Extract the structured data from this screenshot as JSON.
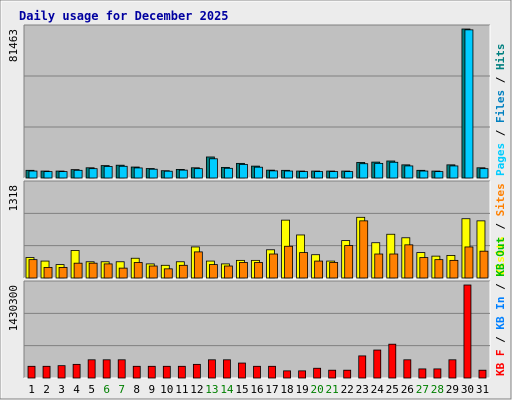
{
  "chart_data": {
    "type": "bar",
    "title": "Daily usage for December 2025",
    "colors": {
      "background": "#ececec",
      "panel": "#c0c0c0",
      "title": "#0000a0",
      "pages": "#00ccff",
      "files": "#0080c0",
      "hits": "#008080",
      "visits": "#ffff00",
      "sites": "#ff8000",
      "kbin": "#0080ff",
      "kbout": "#00c000",
      "kbf": "#ff0000",
      "weekend": "#008000",
      "weekday": "#000000"
    },
    "days": [
      "1",
      "2",
      "3",
      "4",
      "5",
      "6",
      "7",
      "8",
      "9",
      "10",
      "11",
      "12",
      "13",
      "14",
      "15",
      "16",
      "17",
      "18",
      "19",
      "20",
      "21",
      "22",
      "23",
      "24",
      "25",
      "26",
      "27",
      "28",
      "29",
      "30",
      "31"
    ],
    "weekend_days": [
      "6",
      "7",
      "13",
      "14",
      "20",
      "21",
      "27",
      "28"
    ],
    "panels": [
      {
        "id": "hits",
        "ytick": "81463",
        "ymax": 81463,
        "legend": [
          {
            "label": "Pages",
            "color": "#00ccff"
          },
          {
            "label": "Files",
            "color": "#0080c0"
          },
          {
            "label": "Hits",
            "color": "#008080"
          }
        ],
        "series": [
          {
            "key": "hits",
            "color": "#008080",
            "values": [
              4200,
              3800,
              3800,
              4600,
              5600,
              6800,
              7000,
              6000,
              5200,
              4000,
              4700,
              5600,
              11500,
              5800,
              8000,
              6500,
              4300,
              4200,
              3800,
              3800,
              3800,
              3800,
              8500,
              8700,
              9300,
              7200,
              4200,
              3800,
              7200,
              81463,
              5600
            ]
          },
          {
            "key": "files",
            "color": "#00ccff",
            "values": [
              3800,
              3500,
              3500,
              4200,
              5100,
              6300,
              6400,
              5500,
              4800,
              3700,
              4300,
              5100,
              10500,
              5300,
              7400,
              5900,
              3900,
              3800,
              3500,
              3500,
              3500,
              3500,
              7800,
              8000,
              8600,
              6600,
              3800,
              3500,
              6600,
              81000,
              5100
            ]
          }
        ]
      },
      {
        "id": "visits",
        "ytick": "1318",
        "ymax": 1318,
        "legend": [
          {
            "label": "Visits",
            "color": "#ffff00"
          },
          {
            "label": "Sites",
            "color": "#ff8000"
          }
        ],
        "series": [
          {
            "key": "visits",
            "color": "#ffff00",
            "values": [
              290,
              240,
              190,
              390,
              230,
              230,
              230,
              280,
              200,
              180,
              230,
              440,
              240,
              200,
              250,
              250,
              400,
              820,
              610,
              330,
              240,
              530,
              860,
              500,
              620,
              570,
              360,
              310,
              320,
              840,
              810
            ]
          },
          {
            "key": "sites",
            "color": "#ff8000",
            "values": [
              260,
              150,
              150,
              210,
              210,
              200,
              140,
              220,
              170,
              130,
              180,
              370,
              190,
              170,
              220,
              220,
              340,
              450,
              360,
              240,
              220,
              460,
              810,
              340,
              340,
              470,
              290,
              260,
              250,
              440,
              380
            ]
          }
        ]
      },
      {
        "id": "kbytes",
        "ytick": "1430300",
        "ymax": 1430300,
        "legend": [
          {
            "label": "KB F",
            "color": "#ff0000"
          },
          {
            "label": "KB In",
            "color": "#0080ff"
          },
          {
            "label": "KB Out",
            "color": "#00c000"
          }
        ],
        "series": [
          {
            "key": "kbf",
            "color": "#ff0000",
            "values": [
              180000,
              180000,
              190000,
              210000,
              280000,
              280000,
              280000,
              180000,
              180000,
              180000,
              180000,
              210000,
              280000,
              280000,
              230000,
              180000,
              180000,
              110000,
              110000,
              150000,
              120000,
              120000,
              340000,
              430000,
              520000,
              280000,
              140000,
              140000,
              280000,
              1430300,
              120000
            ]
          }
        ]
      }
    ]
  }
}
